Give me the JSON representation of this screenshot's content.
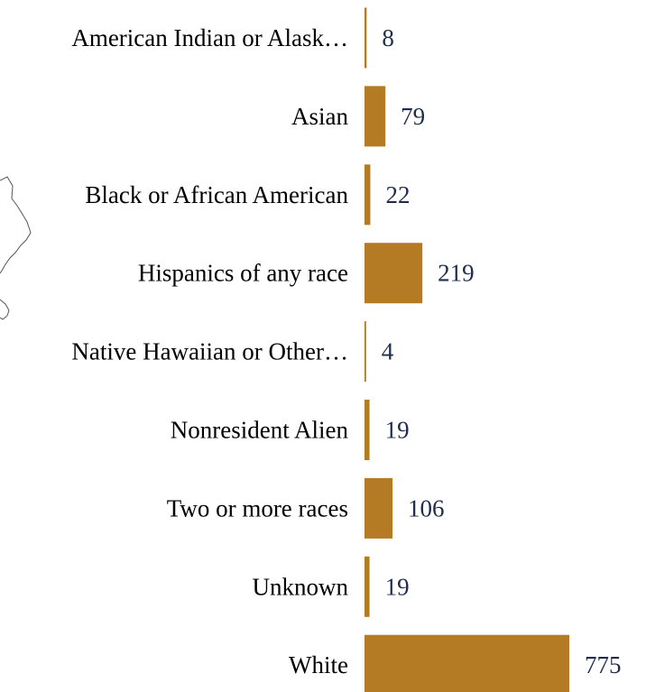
{
  "chart_data": {
    "type": "bar",
    "orientation": "horizontal",
    "categories": [
      "American Indian or Alask…",
      "Asian",
      "Black or African American",
      "Hispanics of any race",
      "Native Hawaiian or Other…",
      "Nonresident Alien",
      "Two or more races",
      "Unknown",
      "White"
    ],
    "values": [
      8,
      79,
      22,
      219,
      4,
      19,
      106,
      19,
      775
    ],
    "xlim": [
      0,
      775
    ],
    "title": "",
    "xlabel": "",
    "ylabel": "",
    "grid": false,
    "legend": "none"
  },
  "colors": {
    "bar": "#b57a24",
    "category_text": "#000000",
    "value_text": "#1f2d4d"
  }
}
